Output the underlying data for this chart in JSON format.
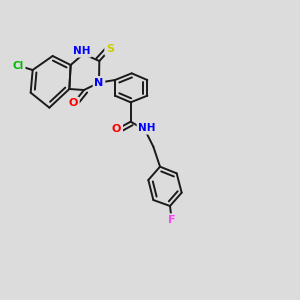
{
  "background_color": "#dcdcdc",
  "bond_color": "#1a1a1a",
  "atom_colors": {
    "Cl": "#00bb00",
    "N": "#0000ff",
    "O": "#ff0000",
    "S": "#cccc00",
    "F": "#ff44ff",
    "C": "#1a1a1a"
  },
  "lw": 1.4,
  "fontsize": 7.5
}
